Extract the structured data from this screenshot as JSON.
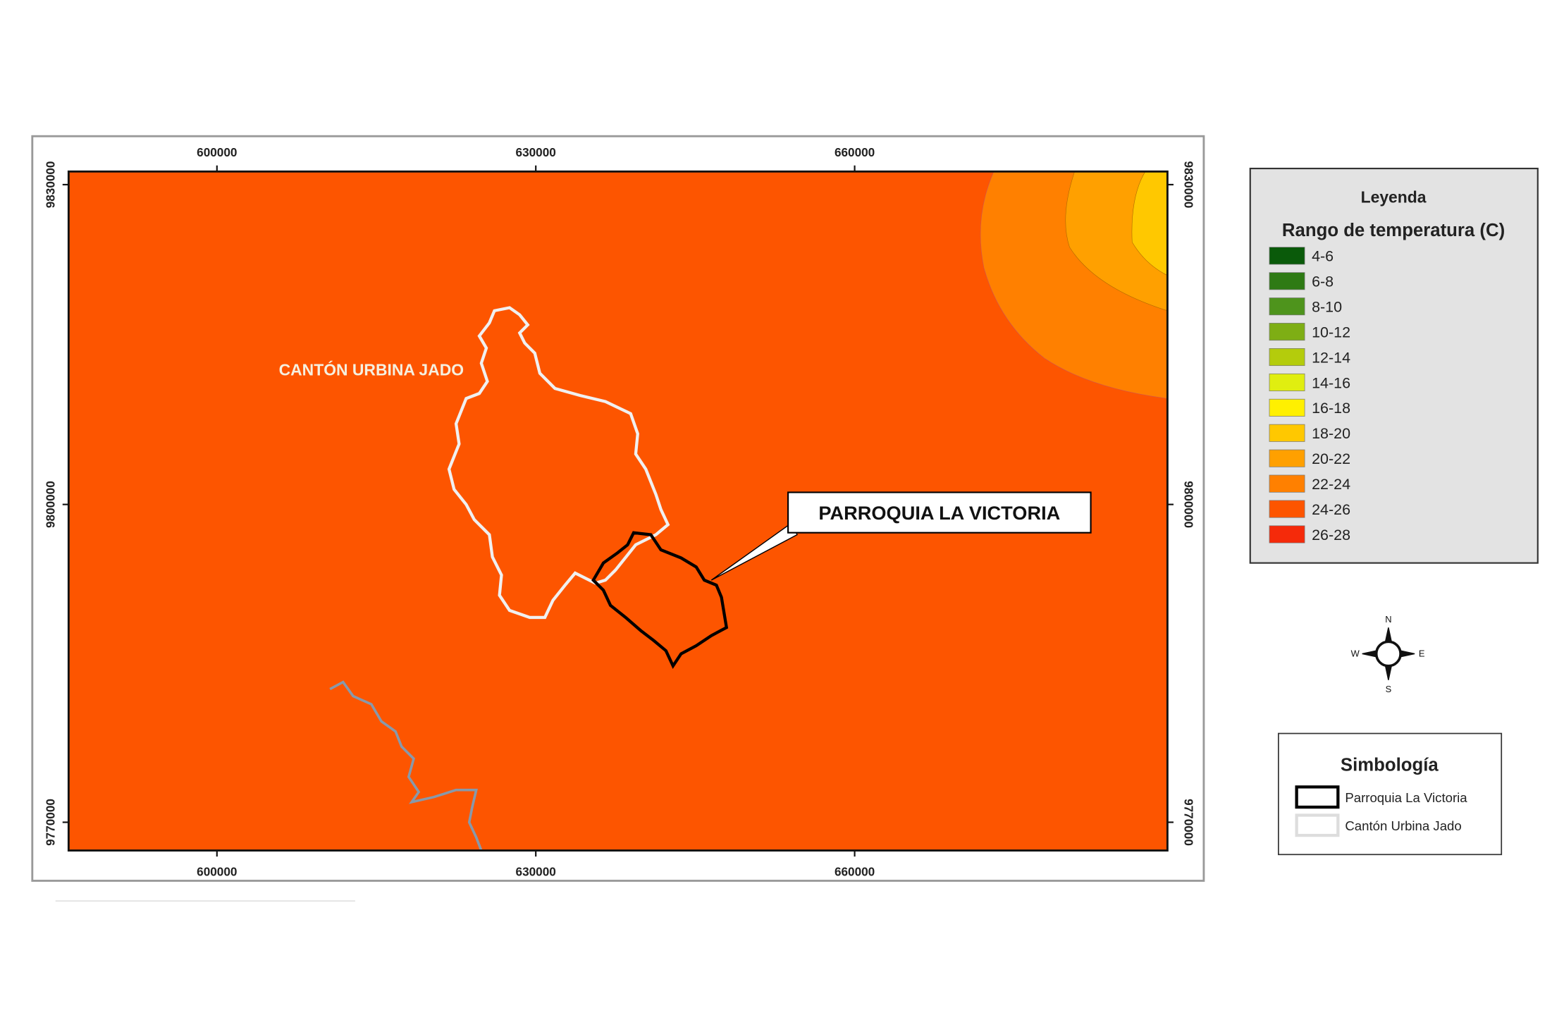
{
  "map": {
    "x_ticks": [
      "600000",
      "630000",
      "660000"
    ],
    "y_ticks": [
      "9830000",
      "9800000",
      "9770000"
    ],
    "background_color": "#fd5500",
    "zone_colors": [
      "#ff8000",
      "#ffa000",
      "#ffc800"
    ],
    "canton_label": "CANTÓN URBINA JADO",
    "callout_label": "PARROQUIA LA VICTORIA"
  },
  "legend": {
    "title": "Leyenda",
    "subtitle": "Rango de temperatura (C)",
    "items": [
      {
        "label": "4-6",
        "color": "#0a5a0a"
      },
      {
        "label": "6-8",
        "color": "#2e7a14"
      },
      {
        "label": "8-10",
        "color": "#4e941c"
      },
      {
        "label": "10-12",
        "color": "#7eae14"
      },
      {
        "label": "12-14",
        "color": "#b4cc0c"
      },
      {
        "label": "14-16",
        "color": "#e0ee10"
      },
      {
        "label": "16-18",
        "color": "#fff000"
      },
      {
        "label": "18-20",
        "color": "#ffc800"
      },
      {
        "label": "20-22",
        "color": "#ffa000"
      },
      {
        "label": "22-24",
        "color": "#ff8000"
      },
      {
        "label": "24-26",
        "color": "#fd5500"
      },
      {
        "label": "26-28",
        "color": "#f52a0a"
      }
    ]
  },
  "compass": {
    "n": "N",
    "s": "S",
    "e": "E",
    "w": "W"
  },
  "symbology": {
    "title": "Simbología",
    "items": [
      {
        "label": "Parroquia La Victoria",
        "stroke": "#000000"
      },
      {
        "label": "Cantón Urbina Jado",
        "stroke": "#dddddd"
      }
    ]
  }
}
